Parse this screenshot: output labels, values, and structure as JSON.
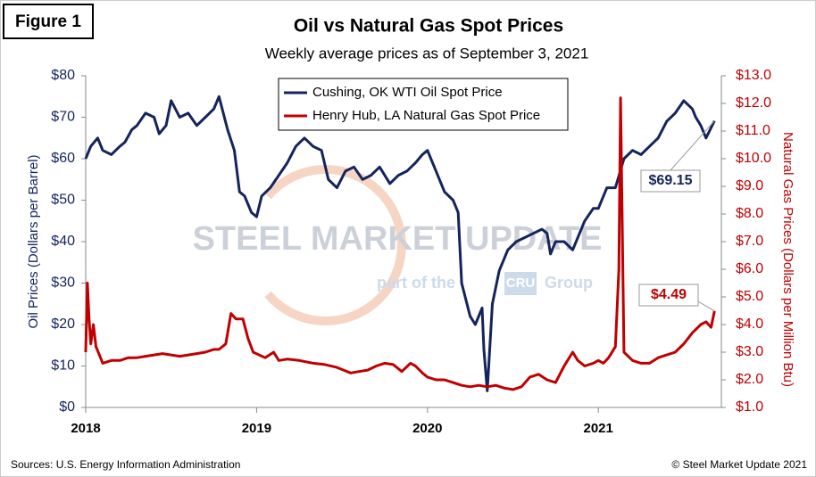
{
  "figure_label": "Figure 1",
  "chart_data": {
    "type": "line",
    "title": "Oil vs Natural Gas Spot Prices",
    "subtitle": "Weekly average prices as of September 3, 2021",
    "ylabel": "Oil Prices (Dollars per Barrel)",
    "y2label": "Natural Gas Prices (Dollars per Million Btu)",
    "xlim": [
      2018,
      2021.72
    ],
    "xticks": [
      2018,
      2019,
      2020,
      2021
    ],
    "ylim": [
      0,
      80
    ],
    "yticks": [
      {
        "value": 0,
        "label": "$0"
      },
      {
        "value": 10,
        "label": "$10"
      },
      {
        "value": 20,
        "label": "$20"
      },
      {
        "value": 30,
        "label": "$30"
      },
      {
        "value": 40,
        "label": "$40"
      },
      {
        "value": 50,
        "label": "$50"
      },
      {
        "value": 60,
        "label": "$60"
      },
      {
        "value": 70,
        "label": "$70"
      },
      {
        "value": 80,
        "label": "$80"
      }
    ],
    "y2lim": [
      1,
      13
    ],
    "y2ticks": [
      {
        "value": 1,
        "label": "$1.0"
      },
      {
        "value": 2,
        "label": "$2.0"
      },
      {
        "value": 3,
        "label": "$3.0"
      },
      {
        "value": 4,
        "label": "$4.0"
      },
      {
        "value": 5,
        "label": "$5.0"
      },
      {
        "value": 6,
        "label": "$6.0"
      },
      {
        "value": 7,
        "label": "$7.0"
      },
      {
        "value": 8,
        "label": "$8.0"
      },
      {
        "value": 9,
        "label": "$9.0"
      },
      {
        "value": 10,
        "label": "$10.0"
      },
      {
        "value": 11,
        "label": "$11.0"
      },
      {
        "value": 12,
        "label": "$12.0"
      },
      {
        "value": 13,
        "label": "$13.0"
      }
    ],
    "legend": "top-center",
    "series": [
      {
        "name": "Cushing, OK WTI Oil Spot Price",
        "color": "#14245c",
        "end_label": "$69.15",
        "x": [
          2018.0,
          2018.03,
          2018.07,
          2018.1,
          2018.15,
          2018.2,
          2018.23,
          2018.27,
          2018.3,
          2018.35,
          2018.4,
          2018.43,
          2018.47,
          2018.5,
          2018.55,
          2018.6,
          2018.65,
          2018.7,
          2018.75,
          2018.78,
          2018.83,
          2018.87,
          2018.9,
          2018.93,
          2018.97,
          2019.0,
          2019.03,
          2019.08,
          2019.13,
          2019.18,
          2019.23,
          2019.28,
          2019.33,
          2019.38,
          2019.42,
          2019.47,
          2019.52,
          2019.57,
          2019.62,
          2019.67,
          2019.72,
          2019.78,
          2019.83,
          2019.88,
          2019.93,
          2019.97,
          2020.0,
          2020.05,
          2020.1,
          2020.15,
          2020.18,
          2020.2,
          2020.25,
          2020.28,
          2020.32,
          2020.33,
          2020.35,
          2020.38,
          2020.42,
          2020.47,
          2020.52,
          2020.57,
          2020.62,
          2020.67,
          2020.7,
          2020.72,
          2020.75,
          2020.8,
          2020.85,
          2020.88,
          2020.92,
          2020.97,
          2021.0,
          2021.05,
          2021.1,
          2021.15,
          2021.2,
          2021.25,
          2021.3,
          2021.35,
          2021.4,
          2021.45,
          2021.5,
          2021.55,
          2021.57,
          2021.6,
          2021.63,
          2021.68
        ],
        "values": [
          60,
          63,
          65,
          62,
          61,
          63,
          64,
          67,
          68,
          71,
          70,
          66,
          68,
          74,
          70,
          71,
          68,
          70,
          72,
          75,
          67,
          62,
          52,
          51,
          47,
          46,
          51,
          53,
          56,
          59,
          63,
          65,
          63,
          62,
          55,
          53,
          57,
          58,
          55,
          56,
          58,
          54,
          56,
          57,
          59,
          61,
          62,
          57,
          52,
          50,
          47,
          30,
          22,
          20,
          24,
          14,
          4,
          25,
          33,
          38,
          40,
          41,
          42,
          43,
          42,
          37,
          40,
          40,
          38,
          41,
          45,
          48,
          48,
          53,
          53,
          60,
          62,
          61,
          63,
          65,
          69,
          71,
          74,
          72,
          70,
          68,
          65,
          69.15
        ]
      },
      {
        "name": "Henry Hub, LA Natural Gas Spot Price",
        "color": "#c00000",
        "axis": "y2",
        "end_label": "$4.49",
        "x": [
          2018.0,
          2018.01,
          2018.02,
          2018.03,
          2018.045,
          2018.06,
          2018.08,
          2018.1,
          2018.15,
          2018.2,
          2018.25,
          2018.3,
          2018.35,
          2018.4,
          2018.45,
          2018.5,
          2018.55,
          2018.6,
          2018.65,
          2018.7,
          2018.75,
          2018.78,
          2018.82,
          2018.85,
          2018.88,
          2018.92,
          2018.95,
          2018.98,
          2019.05,
          2019.1,
          2019.13,
          2019.18,
          2019.25,
          2019.33,
          2019.4,
          2019.47,
          2019.55,
          2019.6,
          2019.65,
          2019.7,
          2019.75,
          2019.8,
          2019.85,
          2019.9,
          2019.93,
          2019.97,
          2020.0,
          2020.05,
          2020.1,
          2020.15,
          2020.2,
          2020.25,
          2020.3,
          2020.35,
          2020.4,
          2020.45,
          2020.5,
          2020.55,
          2020.6,
          2020.65,
          2020.7,
          2020.75,
          2020.8,
          2020.85,
          2020.88,
          2020.92,
          2020.97,
          2021.0,
          2021.03,
          2021.06,
          2021.1,
          2021.12,
          2021.13,
          2021.15,
          2021.2,
          2021.25,
          2021.3,
          2021.35,
          2021.4,
          2021.45,
          2021.5,
          2021.55,
          2021.6,
          2021.63,
          2021.66,
          2021.68
        ],
        "values": [
          3.0,
          5.5,
          4.2,
          3.3,
          4.0,
          3.2,
          2.9,
          2.6,
          2.7,
          2.7,
          2.8,
          2.8,
          2.85,
          2.9,
          2.95,
          2.9,
          2.85,
          2.9,
          2.95,
          3.0,
          3.1,
          3.1,
          3.3,
          4.4,
          4.2,
          4.2,
          3.5,
          3.0,
          2.8,
          3.0,
          2.7,
          2.75,
          2.7,
          2.6,
          2.55,
          2.45,
          2.25,
          2.3,
          2.35,
          2.5,
          2.6,
          2.55,
          2.3,
          2.6,
          2.5,
          2.25,
          2.1,
          2.0,
          2.0,
          1.9,
          1.8,
          1.75,
          1.8,
          1.75,
          1.8,
          1.7,
          1.65,
          1.75,
          2.1,
          2.2,
          2.0,
          1.9,
          2.5,
          3.0,
          2.7,
          2.5,
          2.6,
          2.7,
          2.6,
          2.8,
          3.2,
          6.0,
          12.2,
          3.0,
          2.7,
          2.6,
          2.6,
          2.8,
          2.9,
          3.0,
          3.3,
          3.7,
          4.0,
          4.1,
          3.9,
          4.49
        ]
      }
    ]
  },
  "watermark": {
    "brand": "STEEL MARKET UPDATE",
    "tagline_pre": "part of the",
    "tagline_logo": "CRU",
    "tagline_post": "Group"
  },
  "source": "Sources: U.S. Energy Information Administration",
  "copyright": "© Steel Market Update 2021"
}
